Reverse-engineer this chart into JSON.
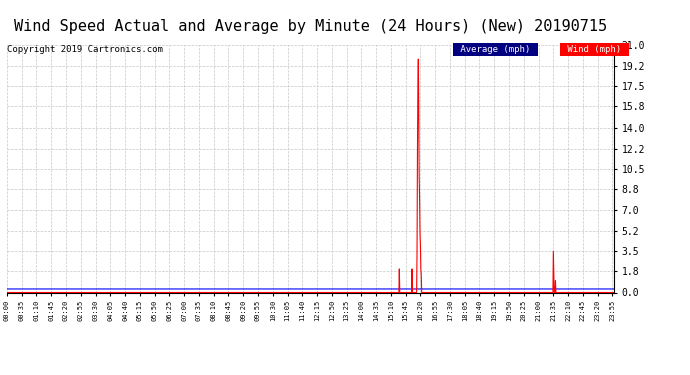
{
  "title": "Wind Speed Actual and Average by Minute (24 Hours) (New) 20190715",
  "copyright": "Copyright 2019 Cartronics.com",
  "yticks": [
    0.0,
    1.8,
    3.5,
    5.2,
    7.0,
    8.8,
    10.5,
    12.2,
    14.0,
    15.8,
    17.5,
    19.2,
    21.0
  ],
  "ymin": 0.0,
  "ymax": 21.0,
  "avg_color": "#0000ff",
  "wind_color": "#ff0000",
  "legend_avg_bg": "#000080",
  "legend_wind_bg": "#ff0000",
  "legend_avg_text": "Average (mph)",
  "legend_wind_text": "Wind (mph)",
  "background_color": "#ffffff",
  "grid_color": "#c8c8c8",
  "title_fontsize": 11,
  "copyright_fontsize": 6.5,
  "avg_value": 0.3,
  "tick_interval": 35,
  "spike_minutes": [
    930,
    960,
    972,
    973,
    974,
    975,
    976,
    977,
    978,
    979,
    980,
    981,
    982,
    1295,
    1296,
    1300
  ],
  "spike_values": [
    2.0,
    2.0,
    3.5,
    12.0,
    17.5,
    19.8,
    15.8,
    10.0,
    8.0,
    5.0,
    4.0,
    2.0,
    1.5,
    3.5,
    1.8,
    1.0
  ]
}
